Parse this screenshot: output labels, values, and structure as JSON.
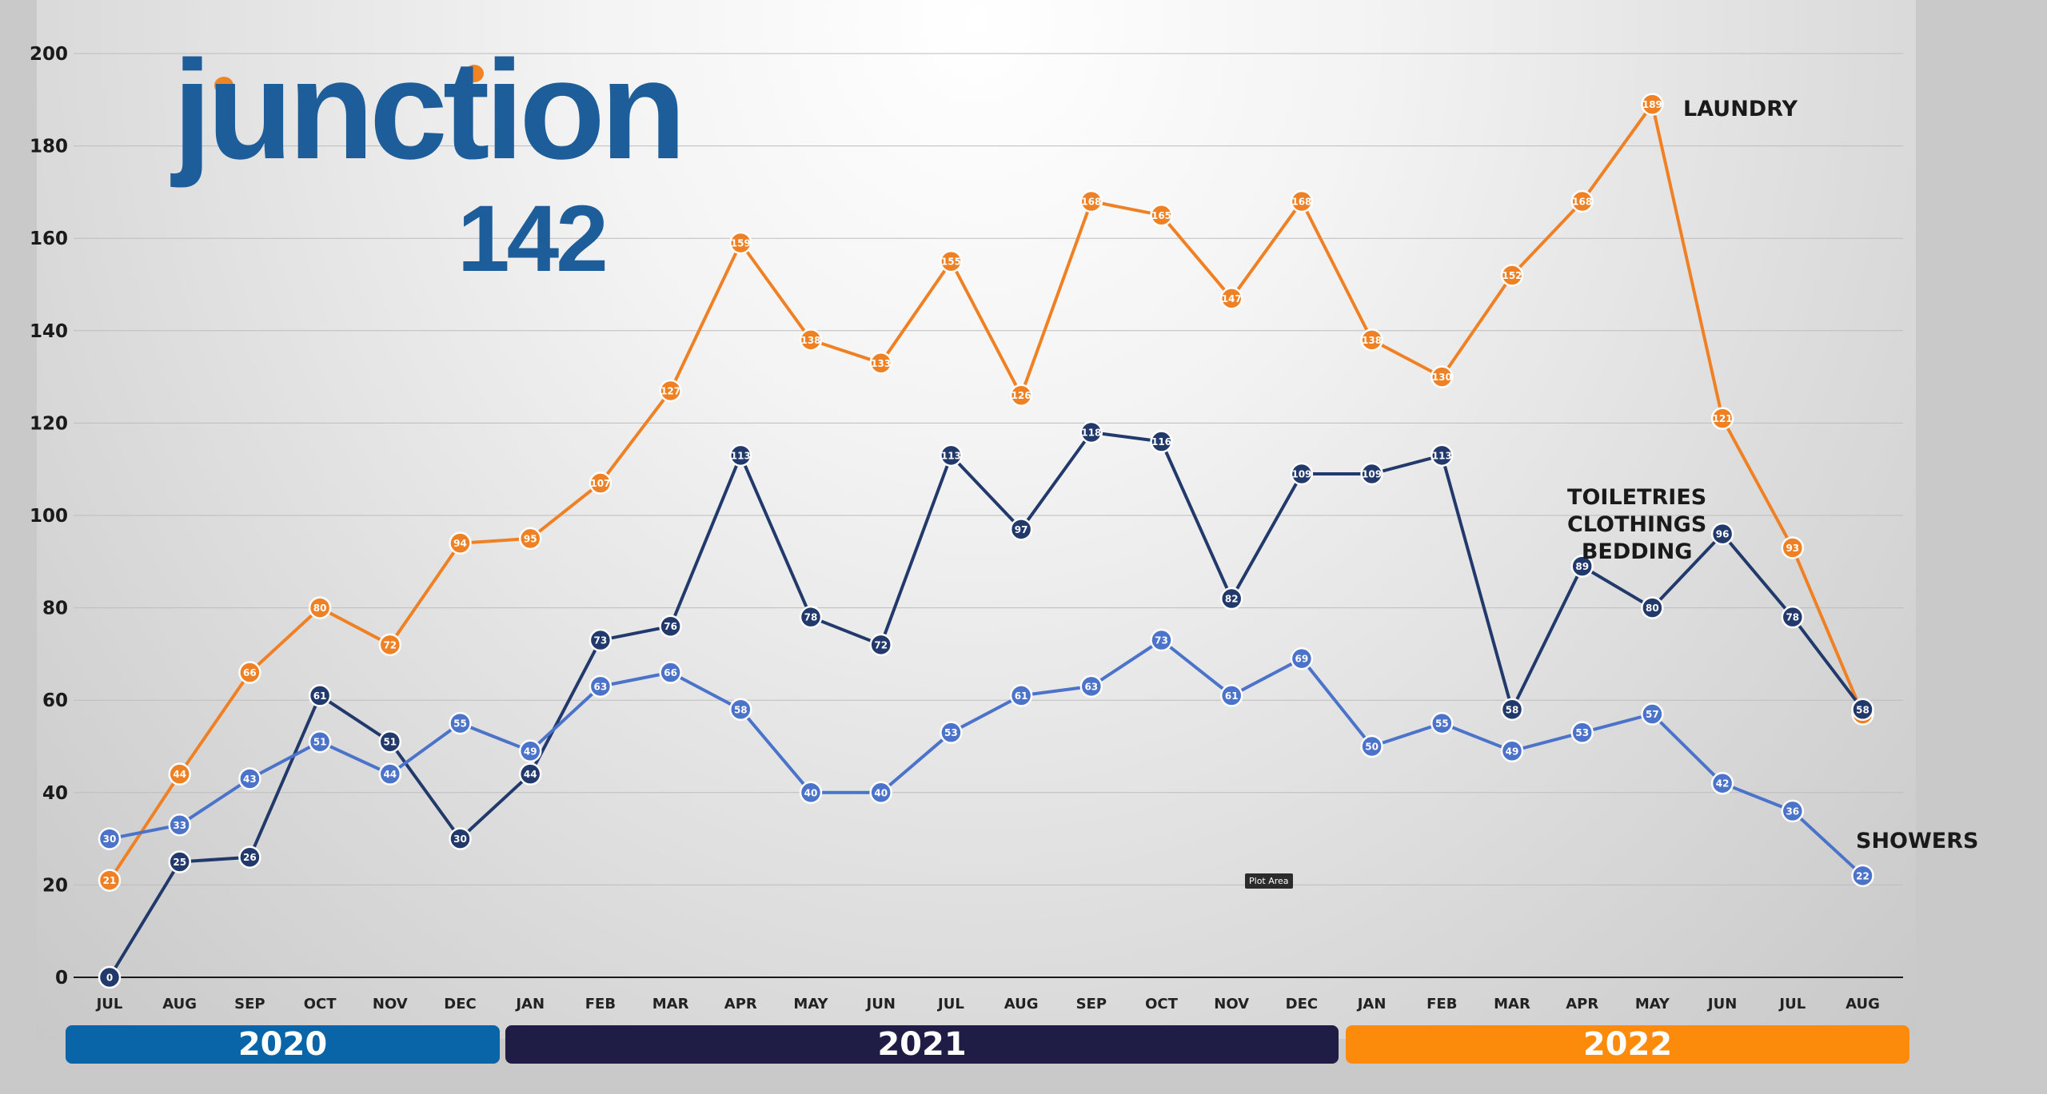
{
  "logo": {
    "word": "junction",
    "number": "142"
  },
  "years": [
    "2020",
    "2021",
    "2022"
  ],
  "labels": {
    "laundry": "LAUNDRY",
    "toiletries": [
      "TOILETRIES",
      "CLOTHINGS",
      "BEDDING"
    ],
    "showers": "SHOWERS"
  },
  "tooltip": "Plot Area",
  "colors": {
    "laundry": "#ef8124",
    "toiletries": "#22396c",
    "showers": "#4a73c9"
  },
  "chart_data": {
    "type": "line",
    "categories": [
      "JUL",
      "AUG",
      "SEP",
      "OCT",
      "NOV",
      "DEC",
      "JAN",
      "FEB",
      "MAR",
      "APR",
      "MAY",
      "JUN",
      "JUL",
      "AUG",
      "SEP",
      "OCT",
      "NOV",
      "DEC",
      "JAN",
      "FEB",
      "MAR",
      "APR",
      "MAY",
      "JUN",
      "JUL",
      "AUG"
    ],
    "ylim": [
      0,
      200
    ],
    "yticks": [
      0,
      20,
      40,
      60,
      80,
      100,
      120,
      140,
      160,
      180,
      200
    ],
    "grid": true,
    "series": [
      {
        "name": "LAUNDRY",
        "key": "laundry",
        "values": [
          21,
          44,
          66,
          80,
          72,
          94,
          95,
          107,
          127,
          159,
          138,
          133,
          155,
          126,
          168,
          165,
          147,
          168,
          138,
          130,
          152,
          168,
          189,
          121,
          93,
          57
        ]
      },
      {
        "name": "TOILETRIES CLOTHINGS BEDDING",
        "key": "toiletries",
        "values": [
          0,
          25,
          26,
          61,
          51,
          30,
          44,
          73,
          76,
          113,
          78,
          72,
          113,
          97,
          118,
          116,
          82,
          109,
          109,
          113,
          58,
          89,
          80,
          96,
          78,
          58
        ]
      },
      {
        "name": "SHOWERS",
        "key": "showers",
        "values": [
          30,
          33,
          43,
          51,
          44,
          55,
          49,
          63,
          66,
          58,
          40,
          40,
          53,
          61,
          63,
          73,
          61,
          69,
          50,
          55,
          49,
          53,
          57,
          42,
          36,
          22
        ]
      }
    ]
  }
}
